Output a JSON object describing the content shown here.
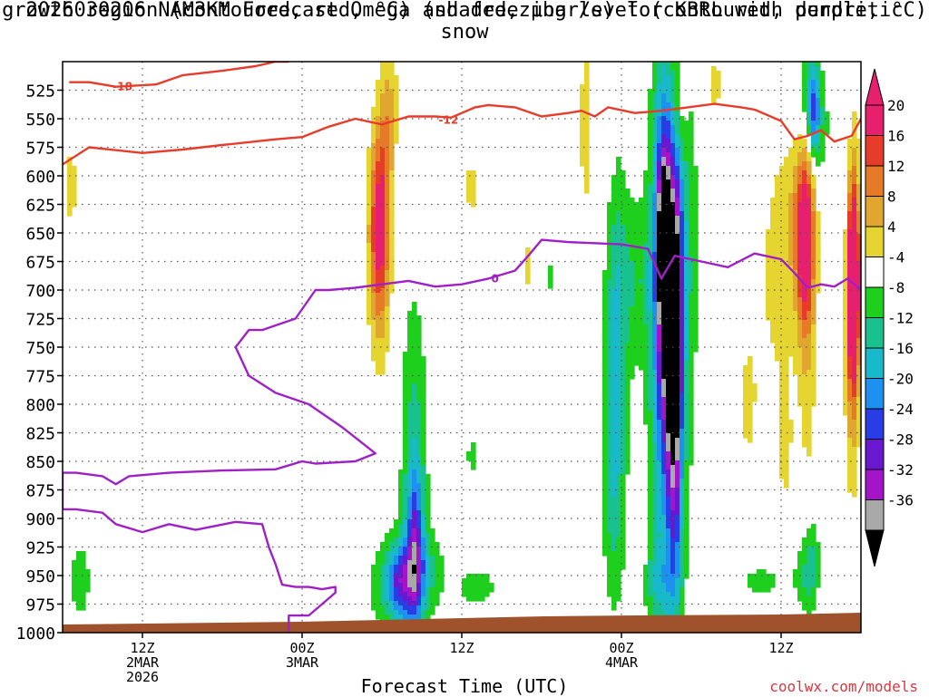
{
  "title_line1": "2026030206 NAM3KM Forecast Omega (shaded, μbar/s) for KBRL with dendritic snow",
  "title_line2": "growth region (contoured, red, °C) and freezing level (contoured, purple, °C)",
  "xlabel": "Forecast Time (UTC)",
  "credit": "coolwx.com/models",
  "chart_data": {
    "type": "heatmap",
    "title": "2026030206 NAM3KM Forecast Omega (shaded, μbar/s) for KBRL with dendritic snow growth region (contoured, red, °C) and freezing level (contoured, purple, °C)",
    "xlabel": "Forecast Time (UTC)",
    "ylabel": "",
    "x_ticks": [
      {
        "hour": 6,
        "lines": [
          "12Z",
          "2MAR",
          "2026"
        ]
      },
      {
        "hour": 18,
        "lines": [
          "00Z",
          "3MAR"
        ]
      },
      {
        "hour": 30,
        "lines": [
          "12Z"
        ]
      },
      {
        "hour": 42,
        "lines": [
          "00Z",
          "4MAR"
        ]
      },
      {
        "hour": 54,
        "lines": [
          "12Z"
        ]
      }
    ],
    "xlim": [
      0,
      60
    ],
    "y_ticks": [
      525,
      550,
      575,
      600,
      625,
      650,
      675,
      700,
      725,
      750,
      775,
      800,
      825,
      850,
      875,
      900,
      925,
      950,
      975,
      1000
    ],
    "ylim": [
      500,
      1000
    ],
    "grid": true,
    "colorbar": {
      "labels": [
        "20",
        "16",
        "12",
        "8",
        "4",
        "-4",
        "-8",
        "-12",
        "-16",
        "-20",
        "-24",
        "-28",
        "-32",
        "-36"
      ],
      "bins": [
        {
          "lo": 20,
          "hi": 24,
          "color": "#e6206e"
        },
        {
          "lo": 16,
          "hi": 20,
          "color": "#e83c2a"
        },
        {
          "lo": 12,
          "hi": 16,
          "color": "#e67a26"
        },
        {
          "lo": 8,
          "hi": 12,
          "color": "#e0a630"
        },
        {
          "lo": 4,
          "hi": 8,
          "color": "#e6d430"
        },
        {
          "lo": -4,
          "hi": 4,
          "color": "#ffffff"
        },
        {
          "lo": -8,
          "hi": -4,
          "color": "#1ecf1e"
        },
        {
          "lo": -12,
          "hi": -8,
          "color": "#19c18f"
        },
        {
          "lo": -16,
          "hi": -12,
          "color": "#19b9cc"
        },
        {
          "lo": -20,
          "hi": -16,
          "color": "#1e90f0"
        },
        {
          "lo": -24,
          "hi": -20,
          "color": "#2a3ce6"
        },
        {
          "lo": -28,
          "hi": -24,
          "color": "#6a18d0"
        },
        {
          "lo": -32,
          "hi": -28,
          "color": "#a414c8"
        },
        {
          "lo": -36,
          "hi": -32,
          "color": "#a8a8a8"
        }
      ],
      "over_color": "#e6206e",
      "under_color": "#000000"
    },
    "omega_blobs": [
      {
        "t": 25.1,
        "p": 960,
        "st": 1.5,
        "sp": 30,
        "v": -9
      },
      {
        "t": 25.3,
        "p": 955,
        "st": 0.7,
        "sp": 22,
        "v": -13
      },
      {
        "t": 26.4,
        "p": 880,
        "st": 0.7,
        "sp": 120,
        "v": -11
      },
      {
        "t": 26.5,
        "p": 920,
        "st": 0.4,
        "sp": 45,
        "v": -14
      },
      {
        "t": 27.0,
        "p": 945,
        "st": 1.3,
        "sp": 25,
        "v": -7
      },
      {
        "t": 23.8,
        "p": 645,
        "st": 0.5,
        "sp": 55,
        "v": 15
      },
      {
        "t": 23.8,
        "p": 660,
        "st": 0.6,
        "sp": 80,
        "v": 9
      },
      {
        "t": 24.3,
        "p": 565,
        "st": 0.4,
        "sp": 55,
        "v": 6
      },
      {
        "t": 24.8,
        "p": 535,
        "st": 0.4,
        "sp": 35,
        "v": 5
      },
      {
        "t": 31.2,
        "p": 960,
        "st": 1.2,
        "sp": 14,
        "v": -6
      },
      {
        "t": 30.7,
        "p": 845,
        "st": 0.3,
        "sp": 25,
        "v": -5
      },
      {
        "t": 30.7,
        "p": 610,
        "st": 0.4,
        "sp": 30,
        "v": 5
      },
      {
        "t": 35.0,
        "p": 680,
        "st": 0.4,
        "sp": 25,
        "v": 5
      },
      {
        "t": 36.6,
        "p": 690,
        "st": 0.3,
        "sp": 15,
        "v": -5
      },
      {
        "t": 39.3,
        "p": 555,
        "st": 0.5,
        "sp": 90,
        "v": 5
      },
      {
        "t": 41.0,
        "p": 560,
        "st": 0.3,
        "sp": 30,
        "v": 5
      },
      {
        "t": 41.6,
        "p": 760,
        "st": 0.6,
        "sp": 120,
        "v": -11
      },
      {
        "t": 41.3,
        "p": 860,
        "st": 0.6,
        "sp": 80,
        "v": -6
      },
      {
        "t": 43.0,
        "p": 690,
        "st": 1.0,
        "sp": 55,
        "v": -7
      },
      {
        "t": 43.5,
        "p": 910,
        "st": 0.3,
        "sp": 40,
        "v": 5
      },
      {
        "t": 44.5,
        "p": 955,
        "st": 1.0,
        "sp": 18,
        "v": -6
      },
      {
        "t": 45.2,
        "p": 640,
        "st": 0.5,
        "sp": 90,
        "v": -18
      },
      {
        "t": 45.2,
        "p": 660,
        "st": 0.25,
        "sp": 40,
        "v": -30
      },
      {
        "t": 45.2,
        "p": 760,
        "st": 0.9,
        "sp": 170,
        "v": -9
      },
      {
        "t": 45.1,
        "p": 820,
        "st": 0.7,
        "sp": 280,
        "v": -6
      },
      {
        "t": 45.6,
        "p": 730,
        "st": 0.6,
        "sp": 80,
        "v": -15
      },
      {
        "t": 45.9,
        "p": 750,
        "st": 0.35,
        "sp": 40,
        "v": -27
      },
      {
        "t": 46.0,
        "p": 760,
        "st": 0.4,
        "sp": 100,
        "v": -17
      },
      {
        "t": 46.2,
        "p": 640,
        "st": 0.4,
        "sp": 60,
        "v": -10
      },
      {
        "t": 46.0,
        "p": 880,
        "st": 0.4,
        "sp": 80,
        "v": -12
      },
      {
        "t": 47.0,
        "p": 680,
        "st": 0.6,
        "sp": 160,
        "v": -7
      },
      {
        "t": 46.5,
        "p": 540,
        "st": 0.4,
        "sp": 35,
        "v": 5
      },
      {
        "t": 48.0,
        "p": 840,
        "st": 0.4,
        "sp": 45,
        "v": 5
      },
      {
        "t": 49.0,
        "p": 520,
        "st": 0.6,
        "sp": 25,
        "v": 5
      },
      {
        "t": 51.5,
        "p": 800,
        "st": 0.5,
        "sp": 45,
        "v": 5
      },
      {
        "t": 52.5,
        "p": 955,
        "st": 1.2,
        "sp": 10,
        "v": -6
      },
      {
        "t": 53.8,
        "p": 700,
        "st": 1.3,
        "sp": 80,
        "v": 5
      },
      {
        "t": 55.0,
        "p": 630,
        "st": 1.0,
        "sp": 45,
        "v": 5
      },
      {
        "t": 54.3,
        "p": 840,
        "st": 0.4,
        "sp": 40,
        "v": 5
      },
      {
        "t": 55.8,
        "p": 650,
        "st": 0.5,
        "sp": 65,
        "v": 14
      },
      {
        "t": 55.8,
        "p": 660,
        "st": 0.4,
        "sp": 40,
        "v": 10
      },
      {
        "t": 56.0,
        "p": 760,
        "st": 0.5,
        "sp": 120,
        "v": 5
      },
      {
        "t": 55.7,
        "p": 950,
        "st": 0.6,
        "sp": 25,
        "v": -7
      },
      {
        "t": 56.3,
        "p": 935,
        "st": 0.4,
        "sp": 35,
        "v": -8
      },
      {
        "t": 56.0,
        "p": 530,
        "st": 0.5,
        "sp": 35,
        "v": -11
      },
      {
        "t": 56.5,
        "p": 545,
        "st": 0.3,
        "sp": 30,
        "v": -15
      },
      {
        "t": 57.0,
        "p": 555,
        "st": 0.5,
        "sp": 35,
        "v": -6
      },
      {
        "t": 59.3,
        "p": 700,
        "st": 0.45,
        "sp": 120,
        "v": 12
      },
      {
        "t": 59.4,
        "p": 700,
        "st": 0.3,
        "sp": 70,
        "v": 18
      },
      {
        "t": 59.5,
        "p": 695,
        "st": 0.25,
        "sp": 45,
        "v": 23
      },
      {
        "t": 59.0,
        "p": 610,
        "st": 0.4,
        "sp": 120,
        "v": -5
      },
      {
        "t": 1.3,
        "p": 955,
        "st": 0.6,
        "sp": 25,
        "v": -7
      },
      {
        "t": 0.6,
        "p": 610,
        "st": 0.5,
        "sp": 40,
        "v": 5
      }
    ],
    "contours": [
      {
        "name": "-18",
        "color": "#e83c2a",
        "label_at": [
          4.5,
          522
        ],
        "points": [
          [
            0.5,
            518
          ],
          [
            2,
            518
          ],
          [
            4,
            522
          ],
          [
            7,
            520
          ],
          [
            9,
            512
          ],
          [
            12,
            508
          ],
          [
            14.5,
            504
          ],
          [
            16,
            500
          ],
          [
            17,
            500
          ]
        ]
      },
      {
        "name": "-12",
        "color": "#e83c2a",
        "label_at": [
          29,
          551
        ],
        "points": [
          [
            0,
            590
          ],
          [
            2,
            575
          ],
          [
            6,
            580
          ],
          [
            9,
            577
          ],
          [
            12,
            573
          ],
          [
            16,
            568
          ],
          [
            18,
            566
          ],
          [
            20,
            557
          ],
          [
            22,
            550
          ],
          [
            24,
            555
          ],
          [
            26,
            548
          ],
          [
            28,
            548
          ],
          [
            29.2,
            549
          ],
          [
            30,
            545
          ],
          [
            31,
            540
          ],
          [
            32,
            538
          ],
          [
            34,
            540
          ],
          [
            36,
            548
          ],
          [
            38,
            545
          ],
          [
            39,
            543
          ],
          [
            40,
            548
          ],
          [
            41,
            540
          ],
          [
            43,
            545
          ],
          [
            45,
            543
          ],
          [
            47,
            540
          ],
          [
            49,
            537
          ],
          [
            51,
            540
          ],
          [
            52,
            542
          ],
          [
            54,
            552
          ],
          [
            55,
            568
          ],
          [
            56,
            565
          ],
          [
            57,
            560
          ],
          [
            58,
            570
          ],
          [
            59.3,
            565
          ],
          [
            60,
            550
          ]
        ]
      },
      {
        "name": "0",
        "color": "#a020c8",
        "label_at": [
          32.5,
          690
        ],
        "points": [
          [
            17,
            1000
          ],
          [
            17,
            985
          ],
          [
            18.5,
            985
          ],
          [
            20.5,
            965
          ],
          [
            20.5,
            960
          ],
          [
            19.5,
            962
          ],
          [
            18.5,
            960
          ],
          [
            17.5,
            960
          ],
          [
            16.5,
            958
          ],
          [
            16,
            940
          ],
          [
            15.5,
            925
          ],
          [
            15,
            905
          ],
          [
            13,
            903
          ],
          [
            10,
            910
          ],
          [
            8,
            905
          ],
          [
            6,
            912
          ],
          [
            4,
            905
          ],
          [
            3,
            895
          ],
          [
            1,
            892
          ],
          [
            0,
            892
          ],
          [
            0,
            860
          ],
          [
            1,
            860
          ],
          [
            3,
            863
          ],
          [
            4,
            870
          ],
          [
            5,
            863
          ],
          [
            8,
            860
          ],
          [
            12,
            858
          ],
          [
            16,
            857
          ],
          [
            18,
            850
          ],
          [
            19,
            852
          ],
          [
            22,
            850
          ],
          [
            23.5,
            843
          ],
          [
            21,
            820
          ],
          [
            18.5,
            800
          ],
          [
            16,
            790
          ],
          [
            14,
            775
          ],
          [
            13,
            750
          ],
          [
            14,
            735
          ],
          [
            15,
            735
          ],
          [
            17.5,
            725
          ],
          [
            19,
            700
          ],
          [
            20,
            700
          ],
          [
            22,
            698
          ],
          [
            24,
            695
          ],
          [
            26,
            692
          ],
          [
            28,
            697
          ],
          [
            30,
            695
          ],
          [
            32,
            690
          ],
          [
            34,
            683
          ],
          [
            35,
            670
          ],
          [
            36,
            656
          ],
          [
            38,
            658
          ],
          [
            42,
            660
          ],
          [
            44,
            664
          ],
          [
            45,
            690
          ],
          [
            46,
            670
          ],
          [
            48,
            675
          ],
          [
            50,
            680
          ],
          [
            52,
            668
          ],
          [
            54,
            673
          ],
          [
            55,
            685
          ],
          [
            56,
            698
          ],
          [
            57,
            695
          ],
          [
            58,
            697
          ],
          [
            59,
            690
          ],
          [
            60,
            700
          ]
        ]
      }
    ]
  }
}
